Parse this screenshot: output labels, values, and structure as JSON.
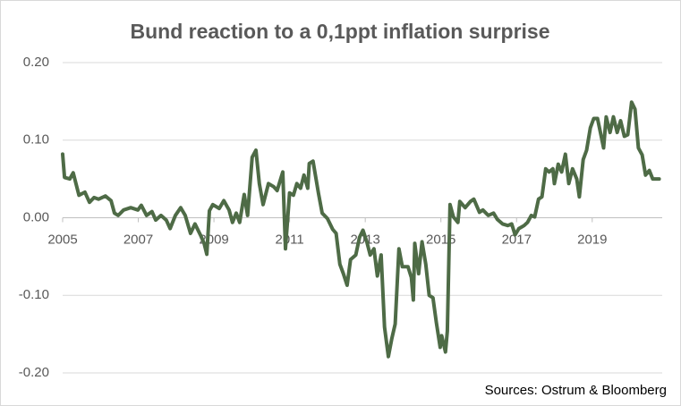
{
  "chart_data": {
    "type": "line",
    "title": "Bund reaction to a 0,1ppt inflation surprise",
    "source": "Sources: Ostrum & Bloomberg",
    "xlim": [
      2005,
      2020.85
    ],
    "xticks": [
      2005,
      2007,
      2009,
      2011,
      2013,
      2015,
      2017,
      2019
    ],
    "ylim": [
      -0.2,
      0.2
    ],
    "yticks": [
      {
        "value": 0.2,
        "label": "0.20"
      },
      {
        "value": 0.1,
        "label": "0.10"
      },
      {
        "value": 0,
        "label": "0.00"
      },
      {
        "value": -0.1,
        "label": "-0.10"
      },
      {
        "value": -0.2,
        "label": "-0.20"
      }
    ],
    "grid": true,
    "series": [
      {
        "name": "Bund reaction",
        "color": "#4e6b46",
        "x": [
          2005.0,
          2005.05,
          2005.19,
          2005.28,
          2005.43,
          2005.59,
          2005.71,
          2005.83,
          2005.95,
          2006.13,
          2006.28,
          2006.37,
          2006.47,
          2006.61,
          2006.8,
          2006.99,
          2007.08,
          2007.22,
          2007.36,
          2007.46,
          2007.6,
          2007.74,
          2007.84,
          2007.98,
          2008.12,
          2008.24,
          2008.38,
          2008.5,
          2008.64,
          2008.74,
          2008.81,
          2008.88,
          2008.97,
          2009.14,
          2009.26,
          2009.4,
          2009.49,
          2009.59,
          2009.68,
          2009.8,
          2009.89,
          2010.01,
          2010.11,
          2010.2,
          2010.3,
          2010.44,
          2010.58,
          2010.67,
          2010.82,
          2010.89,
          2011.0,
          2011.1,
          2011.19,
          2011.29,
          2011.38,
          2011.48,
          2011.52,
          2011.62,
          2011.76,
          2011.86,
          2012.0,
          2012.14,
          2012.23,
          2012.33,
          2012.42,
          2012.52,
          2012.61,
          2012.75,
          2012.85,
          2012.94,
          2013.04,
          2013.13,
          2013.23,
          2013.32,
          2013.42,
          2013.51,
          2013.61,
          2013.7,
          2013.79,
          2013.89,
          2013.98,
          2014.13,
          2014.22,
          2014.27,
          2014.31,
          2014.41,
          2014.5,
          2014.6,
          2014.69,
          2014.79,
          2014.88,
          2014.98,
          2015.02,
          2015.12,
          2015.17,
          2015.24,
          2015.33,
          2015.45,
          2015.5,
          2015.64,
          2015.78,
          2015.87,
          2016.02,
          2016.11,
          2016.25,
          2016.39,
          2016.49,
          2016.63,
          2016.77,
          2016.87,
          2016.96,
          2017.06,
          2017.2,
          2017.29,
          2017.39,
          2017.48,
          2017.58,
          2017.67,
          2017.77,
          2017.86,
          2017.96,
          2018.0,
          2018.1,
          2018.19,
          2018.29,
          2018.38,
          2018.48,
          2018.59,
          2018.66,
          2018.76,
          2018.85,
          2018.95,
          2019.04,
          2019.14,
          2019.23,
          2019.3,
          2019.37,
          2019.47,
          2019.56,
          2019.66,
          2019.75,
          2019.85,
          2019.94,
          2020.04,
          2020.13,
          2020.22,
          2020.32,
          2020.41,
          2020.51,
          2020.6,
          2020.77
        ],
        "values": [
          0.082,
          0.052,
          0.05,
          0.058,
          0.029,
          0.033,
          0.02,
          0.026,
          0.024,
          0.028,
          0.022,
          0.006,
          0.003,
          0.01,
          0.013,
          0.01,
          0.016,
          0.003,
          0.008,
          -0.003,
          0.003,
          -0.003,
          -0.014,
          0.003,
          0.013,
          0.003,
          -0.02,
          -0.008,
          -0.022,
          -0.033,
          -0.047,
          0.009,
          0.017,
          0.012,
          0.022,
          0.01,
          -0.006,
          0.006,
          -0.006,
          0.03,
          0.003,
          0.078,
          0.087,
          0.044,
          0.017,
          0.044,
          0.04,
          0.035,
          0.059,
          -0.04,
          0.032,
          0.029,
          0.044,
          0.038,
          0.055,
          0.038,
          0.07,
          0.073,
          0.032,
          0.006,
          -0.001,
          -0.015,
          -0.02,
          -0.06,
          -0.072,
          -0.087,
          -0.054,
          -0.048,
          -0.025,
          -0.016,
          -0.031,
          -0.048,
          -0.04,
          -0.075,
          -0.048,
          -0.141,
          -0.179,
          -0.156,
          -0.137,
          -0.04,
          -0.063,
          -0.063,
          -0.077,
          -0.106,
          -0.033,
          -0.072,
          -0.031,
          -0.06,
          -0.1,
          -0.103,
          -0.135,
          -0.167,
          -0.152,
          -0.173,
          -0.146,
          0.017,
          0.001,
          -0.006,
          0.021,
          0.013,
          0.021,
          0.024,
          0.007,
          0.01,
          0.003,
          0.006,
          -0.002,
          -0.008,
          -0.01,
          -0.008,
          -0.022,
          -0.014,
          -0.01,
          -0.006,
          0.003,
          0.001,
          0.024,
          0.027,
          0.063,
          0.059,
          0.063,
          0.044,
          0.069,
          0.059,
          0.082,
          0.044,
          0.063,
          0.05,
          0.027,
          0.075,
          0.087,
          0.116,
          0.128,
          0.128,
          0.107,
          0.09,
          0.13,
          0.11,
          0.13,
          0.11,
          0.125,
          0.105,
          0.107,
          0.149,
          0.14,
          0.09,
          0.081,
          0.055,
          0.061,
          0.05,
          0.05
        ]
      }
    ]
  }
}
